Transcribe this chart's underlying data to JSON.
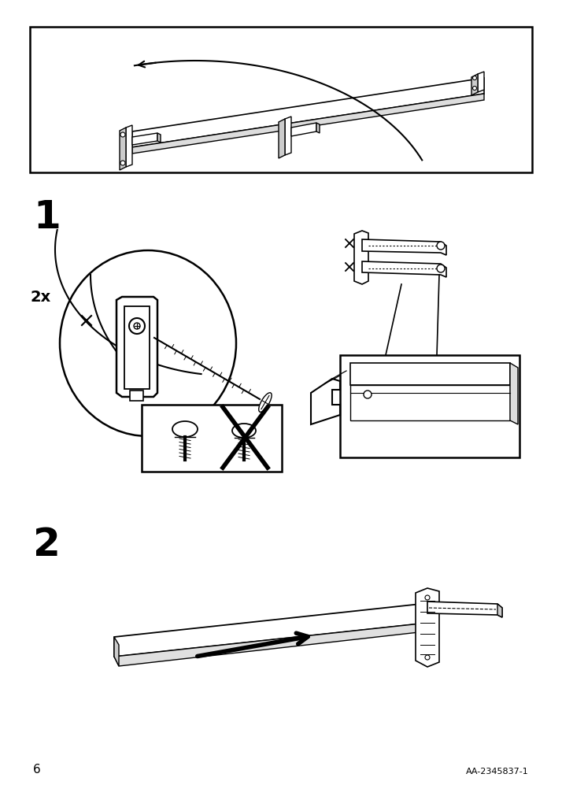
{
  "bg_color": "#ffffff",
  "line_color": "#000000",
  "page_number": "6",
  "article_number": "AA-2345837-1",
  "step1_label": "1",
  "step2_label": "2",
  "quantity_label": "2x",
  "fig_width": 7.14,
  "fig_height": 10.12,
  "dpi": 100
}
